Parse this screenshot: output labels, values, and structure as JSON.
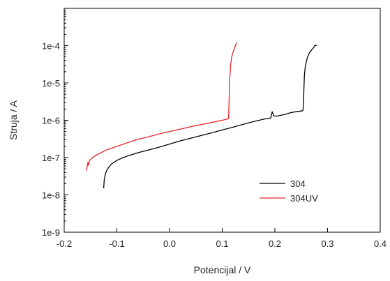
{
  "chart_data": {
    "type": "line",
    "title": "",
    "xlabel": "Potencijal / V",
    "ylabel": "Struja / A",
    "xlim": [
      -0.2,
      0.4
    ],
    "ylim": [
      1e-09,
      0.001
    ],
    "yscale": "log",
    "x_ticks": [
      -0.2,
      -0.1,
      0.0,
      0.1,
      0.2,
      0.3,
      0.4
    ],
    "x_tick_labels": [
      "-0.2",
      "-0.1",
      "0.0",
      "0.1",
      "0.2",
      "0.3",
      "0.4"
    ],
    "y_ticks": [
      1e-09,
      1e-08,
      1e-07,
      1e-06,
      1e-05,
      0.0001
    ],
    "y_tick_labels": [
      "1e-9",
      "1e-8",
      "1e-7",
      "1e-6",
      "1e-5",
      "1e-4"
    ],
    "grid": false,
    "legend_position": "inside-lower-right",
    "series": [
      {
        "name": "304",
        "color": "#000000",
        "points": [
          [
            -0.125,
            1.5e-08
          ],
          [
            -0.124,
            2.5e-08
          ],
          [
            -0.122,
            3.6e-08
          ],
          [
            -0.119,
            4.6e-08
          ],
          [
            -0.115,
            5.6e-08
          ],
          [
            -0.11,
            6.8e-08
          ],
          [
            -0.1,
            8.4e-08
          ],
          [
            -0.09,
            9.8e-08
          ],
          [
            -0.08,
            1.1e-07
          ],
          [
            -0.06,
            1.35e-07
          ],
          [
            -0.04,
            1.6e-07
          ],
          [
            -0.02,
            1.9e-07
          ],
          [
            0.0,
            2.3e-07
          ],
          [
            0.02,
            2.8e-07
          ],
          [
            0.04,
            3.3e-07
          ],
          [
            0.06,
            3.9e-07
          ],
          [
            0.08,
            4.6e-07
          ],
          [
            0.1,
            5.5e-07
          ],
          [
            0.12,
            6.5e-07
          ],
          [
            0.14,
            7.8e-07
          ],
          [
            0.16,
            9.3e-07
          ],
          [
            0.18,
            1.08e-06
          ],
          [
            0.192,
            1.15e-06
          ],
          [
            0.195,
            1.7e-06
          ],
          [
            0.198,
            1.3e-06
          ],
          [
            0.205,
            1.3e-06
          ],
          [
            0.22,
            1.45e-06
          ],
          [
            0.23,
            1.6e-06
          ],
          [
            0.24,
            1.7e-06
          ],
          [
            0.253,
            1.8e-06
          ],
          [
            0.254,
            2.2e-06
          ],
          [
            0.255,
            6e-06
          ],
          [
            0.256,
            1.6e-05
          ],
          [
            0.258,
            3e-05
          ],
          [
            0.262,
            5e-05
          ],
          [
            0.266,
            6.6e-05
          ],
          [
            0.27,
            7.8e-05
          ],
          [
            0.274,
            9e-05
          ],
          [
            0.276,
            0.000103
          ],
          [
            0.278,
            0.0001
          ],
          [
            0.28,
            0.000102
          ]
        ]
      },
      {
        "name": "304UV",
        "color": "#e8262b",
        "points": [
          [
            -0.158,
            4.5e-08
          ],
          [
            -0.156,
            6e-08
          ],
          [
            -0.155,
            7.5e-08
          ],
          [
            -0.154,
            6.2e-08
          ],
          [
            -0.152,
            8.2e-08
          ],
          [
            -0.148,
            9.5e-08
          ],
          [
            -0.14,
            1.15e-07
          ],
          [
            -0.13,
            1.35e-07
          ],
          [
            -0.12,
            1.6e-07
          ],
          [
            -0.1,
            2e-07
          ],
          [
            -0.08,
            2.5e-07
          ],
          [
            -0.06,
            3.1e-07
          ],
          [
            -0.04,
            3.6e-07
          ],
          [
            -0.02,
            4.3e-07
          ],
          [
            0.0,
            5e-07
          ],
          [
            0.02,
            5.8e-07
          ],
          [
            0.04,
            6.7e-07
          ],
          [
            0.06,
            7.7e-07
          ],
          [
            0.08,
            8.7e-07
          ],
          [
            0.1,
            1e-06
          ],
          [
            0.112,
            1.1e-06
          ],
          [
            0.113,
            3e-06
          ],
          [
            0.114,
            1.2e-05
          ],
          [
            0.116,
            3e-05
          ],
          [
            0.118,
            5e-05
          ],
          [
            0.121,
            7e-05
          ],
          [
            0.124,
            9e-05
          ],
          [
            0.126,
            0.00011
          ],
          [
            0.128,
            0.00012
          ]
        ]
      }
    ]
  }
}
